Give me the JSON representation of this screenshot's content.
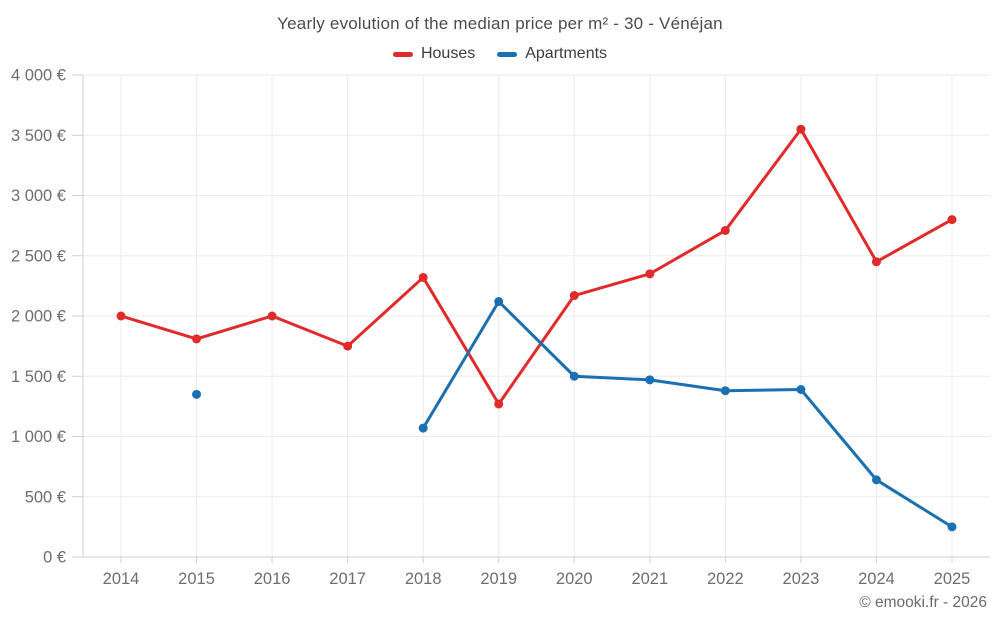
{
  "chart_data": {
    "type": "line",
    "title": "Yearly evolution of the median price per m² - 30 - Vénéjan",
    "categories": [
      "2014",
      "2015",
      "2016",
      "2017",
      "2018",
      "2019",
      "2020",
      "2021",
      "2022",
      "2023",
      "2024",
      "2025"
    ],
    "series": [
      {
        "name": "Houses",
        "color": "#e02b2b",
        "values": [
          2000,
          1810,
          2000,
          1750,
          2320,
          1270,
          2170,
          2350,
          2710,
          3550,
          2450,
          2800
        ]
      },
      {
        "name": "Apartments",
        "color": "#1a70b0",
        "values": [
          null,
          1350,
          null,
          null,
          1070,
          2120,
          1500,
          1470,
          1380,
          1390,
          640,
          250
        ]
      }
    ],
    "xlabel": "",
    "ylabel": "",
    "ylim": [
      0,
      4000
    ],
    "ytick_step": 500,
    "ytick_labels": [
      "0 €",
      "500 €",
      "1 000 €",
      "1 500 €",
      "2 000 €",
      "2 500 €",
      "3 000 €",
      "3 500 €",
      "4 000 €"
    ],
    "grid": true,
    "legend_position": "top",
    "currency": "€"
  },
  "footer": {
    "credit": "© emooki.fr - 2026"
  }
}
